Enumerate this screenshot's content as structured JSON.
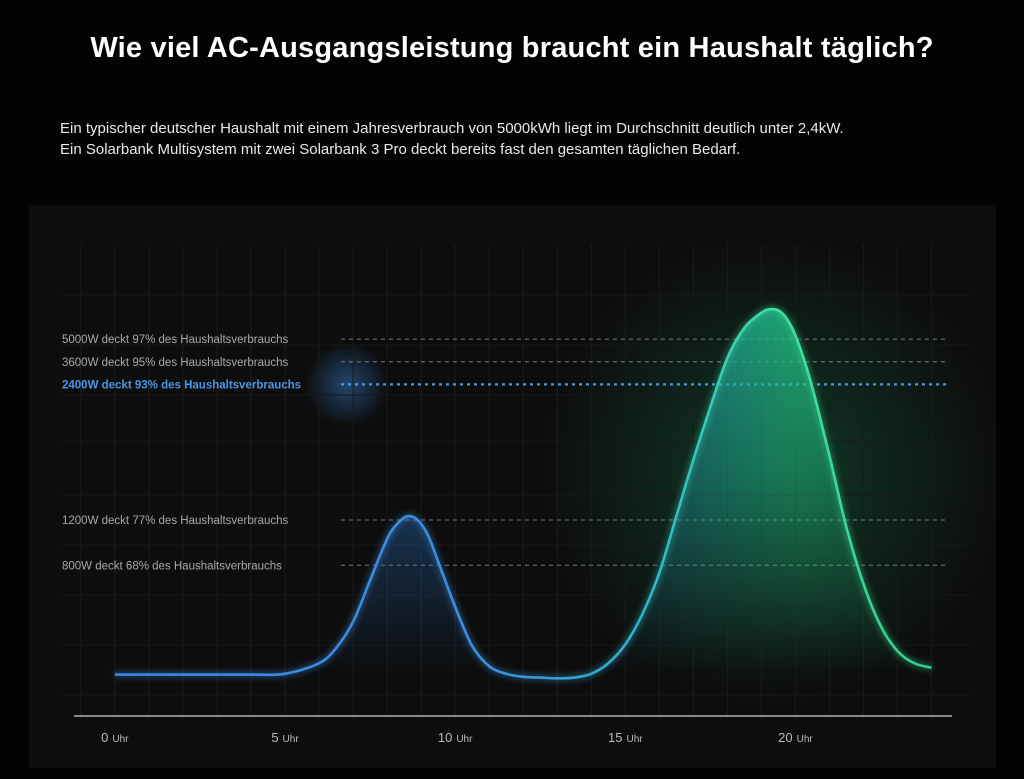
{
  "header": {
    "title": "Wie viel AC-Ausgangsleistung braucht ein Haushalt täglich?",
    "description_lines": [
      "Ein typischer deutscher Haushalt mit einem Jahresverbrauch von 5000kWh liegt im Durchschnitt deutlich unter 2,4kW.",
      "Ein Solarbank Multisystem mit zwei Solarbank 3 Pro deckt bereits fast den gesamten täglichen Bedarf."
    ]
  },
  "colors": {
    "background": "#030303",
    "panel": "#0d0d0d",
    "blue": "#3d8fe0",
    "green": "#3de89a",
    "highlight_label": "#4a97e6",
    "dim_text": "#a9a9a9"
  },
  "chart_data": {
    "type": "area",
    "title": "",
    "xlabel": "",
    "ylabel": "",
    "x_ticks": [
      {
        "value": 0,
        "num": "0",
        "unit": "Uhr"
      },
      {
        "value": 5,
        "num": "5",
        "unit": "Uhr"
      },
      {
        "value": 10,
        "num": "10",
        "unit": "Uhr"
      },
      {
        "value": 15,
        "num": "15",
        "unit": "Uhr"
      },
      {
        "value": 20,
        "num": "20",
        "unit": "Uhr"
      }
    ],
    "xlim": [
      -1.2,
      24.6
    ],
    "ylim": [
      0,
      5400
    ],
    "grid": true,
    "reference_lines": [
      {
        "value": 5000,
        "label": "5000W deckt 97% des Haushaltsverbrauchs",
        "highlight": false
      },
      {
        "value": 4700,
        "label": "3600W deckt 95% des Haushaltsverbrauchs",
        "highlight": false
      },
      {
        "value": 4400,
        "label": "2400W deckt 93% des Haushaltsverbrauchs",
        "highlight": true
      },
      {
        "value": 2600,
        "label": "1200W deckt 77% des Haushaltsverbrauchs",
        "highlight": false
      },
      {
        "value": 2000,
        "label": "800W deckt 68% des Haushaltsverbrauchs",
        "highlight": false
      }
    ],
    "series": [
      {
        "x": [
          0,
          1,
          2,
          3,
          4,
          5,
          6,
          6.5,
          7,
          7.5,
          8,
          8.3,
          8.6,
          8.9,
          9.2,
          9.5,
          10,
          10.5,
          11,
          11.5,
          12,
          12.5,
          13,
          13.5,
          14,
          14.5,
          15,
          15.5,
          16,
          16.5,
          17,
          17.5,
          18,
          18.5,
          19,
          19.3,
          19.6,
          19.9,
          20.2,
          20.5,
          21,
          21.5,
          22,
          22.5,
          23,
          23.5,
          24
        ],
        "y": [
          550,
          550,
          550,
          550,
          550,
          560,
          700,
          900,
          1250,
          1800,
          2350,
          2550,
          2650,
          2600,
          2400,
          2050,
          1450,
          930,
          660,
          560,
          520,
          510,
          500,
          510,
          560,
          700,
          950,
          1350,
          1900,
          2650,
          3400,
          4100,
          4750,
          5150,
          5350,
          5400,
          5350,
          5150,
          4800,
          4350,
          3450,
          2500,
          1750,
          1200,
          860,
          700,
          640
        ]
      }
    ]
  }
}
